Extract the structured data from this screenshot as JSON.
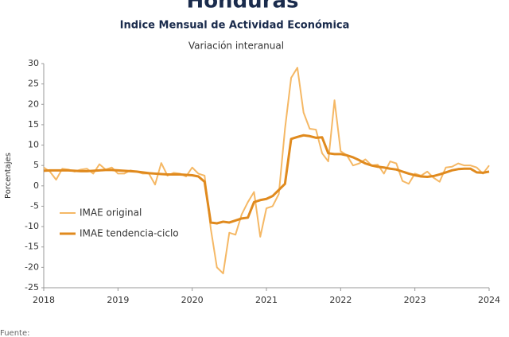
{
  "chart_data": {
    "type": "line",
    "title": "Honduras",
    "subtitle": "Indice Mensual de  Actividad Económica",
    "chart_subtitle": "Variación interanual",
    "y_label": "Porcentajes",
    "source": "Fuente:",
    "x": [
      2018,
      2018.083,
      2018.167,
      2018.25,
      2018.333,
      2018.417,
      2018.5,
      2018.583,
      2018.667,
      2018.75,
      2018.833,
      2018.917,
      2019,
      2019.083,
      2019.167,
      2019.25,
      2019.333,
      2019.417,
      2019.5,
      2019.583,
      2019.667,
      2019.75,
      2019.833,
      2019.917,
      2020,
      2020.083,
      2020.167,
      2020.25,
      2020.333,
      2020.417,
      2020.5,
      2020.583,
      2020.667,
      2020.75,
      2020.833,
      2020.917,
      2021,
      2021.083,
      2021.167,
      2021.25,
      2021.333,
      2021.417,
      2021.5,
      2021.583,
      2021.667,
      2021.75,
      2021.833,
      2021.917,
      2022,
      2022.083,
      2022.167,
      2022.25,
      2022.333,
      2022.417,
      2022.5,
      2022.583,
      2022.667,
      2022.75,
      2022.833,
      2022.917,
      2023,
      2023.083,
      2023.167,
      2023.25,
      2023.333,
      2023.417,
      2023.5,
      2023.583,
      2023.667,
      2023.75,
      2023.833,
      2023.917,
      2024
    ],
    "series": [
      {
        "name": "IMAE original",
        "color": "#f5b865",
        "width": 2,
        "values": [
          4.5,
          3.5,
          1.5,
          4.2,
          4.0,
          3.5,
          4.0,
          4.2,
          3.0,
          5.3,
          4.0,
          4.5,
          3.0,
          3.0,
          3.8,
          3.5,
          3.0,
          3.0,
          0.3,
          5.6,
          2.5,
          3.2,
          3.0,
          2.3,
          4.5,
          3.0,
          2.5,
          -10.5,
          -20.0,
          -21.5,
          -11.5,
          -12.0,
          -7.0,
          -4.0,
          -1.5,
          -12.5,
          -5.5,
          -5.0,
          -2.0,
          14.0,
          26.5,
          29.0,
          18.0,
          14.0,
          13.8,
          8.0,
          6.0,
          21.0,
          8.5,
          7.5,
          5.0,
          5.5,
          6.5,
          5.0,
          5.2,
          3.0,
          6.0,
          5.5,
          1.2,
          0.5,
          3.0,
          2.5,
          3.5,
          2.0,
          1.0,
          4.5,
          4.7,
          5.5,
          5.0,
          5.0,
          4.5,
          3.0,
          5.0
        ]
      },
      {
        "name": "IMAE tendencia-ciclo",
        "color": "#e08a1e",
        "width": 3,
        "values": [
          3.7,
          3.8,
          3.8,
          3.8,
          3.8,
          3.7,
          3.6,
          3.6,
          3.7,
          3.8,
          3.9,
          3.9,
          3.8,
          3.7,
          3.6,
          3.5,
          3.3,
          3.1,
          3.0,
          2.9,
          2.8,
          2.8,
          2.8,
          2.7,
          2.6,
          2.3,
          1.0,
          -9.0,
          -9.2,
          -8.8,
          -9.0,
          -8.5,
          -8.0,
          -7.8,
          -4.0,
          -3.5,
          -3.2,
          -2.5,
          -1.0,
          0.5,
          11.5,
          12.0,
          12.4,
          12.2,
          11.8,
          11.9,
          8.0,
          7.8,
          7.8,
          7.5,
          7.0,
          6.3,
          5.5,
          5.0,
          4.7,
          4.5,
          4.2,
          4.0,
          3.5,
          3.0,
          2.6,
          2.3,
          2.2,
          2.4,
          2.8,
          3.3,
          3.8,
          4.1,
          4.2,
          4.2,
          3.3,
          3.2,
          3.5
        ]
      }
    ],
    "xlim": [
      2018,
      2024
    ],
    "xticks": [
      2018,
      2019,
      2020,
      2021,
      2022,
      2023,
      2024
    ],
    "ylim": [
      -25,
      30
    ],
    "yticks": [
      -25,
      -20,
      -15,
      -10,
      -5,
      0,
      5,
      10,
      15,
      20,
      25,
      30
    ],
    "grid": false,
    "legend": "left"
  }
}
